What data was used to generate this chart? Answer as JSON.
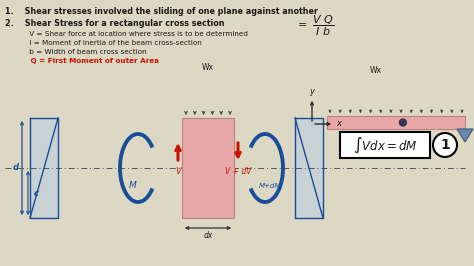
{
  "bg_color": "#ddd8c4",
  "text_color": "#1a1a1a",
  "red_color": "#cc1100",
  "blue_color": "#1a4d99",
  "beam_fill": "#e8a8a8",
  "beam_edge": "#c08080",
  "title1": "1.    Shear stresses involved the sliding of one plane against another",
  "title2": "2.    Shear Stress for a rectangular cross section",
  "desc1": "     V = Shear force at location where stress is to be determined",
  "desc2": "     I = Moment of inertia of the beam cross-section",
  "desc3": "     b = Width of beam cross section",
  "desc4": "     Q = First Moment of outer Area",
  "wx_label": "Wx",
  "wx_label2": "Wx",
  "y_label": "y",
  "x_label": "x",
  "M_label": "M",
  "MdM_label": "M+dM",
  "V_label": "V",
  "VdV_label": "V + dV",
  "dx_label": "dx",
  "d_label": "d",
  "c_label": "c"
}
